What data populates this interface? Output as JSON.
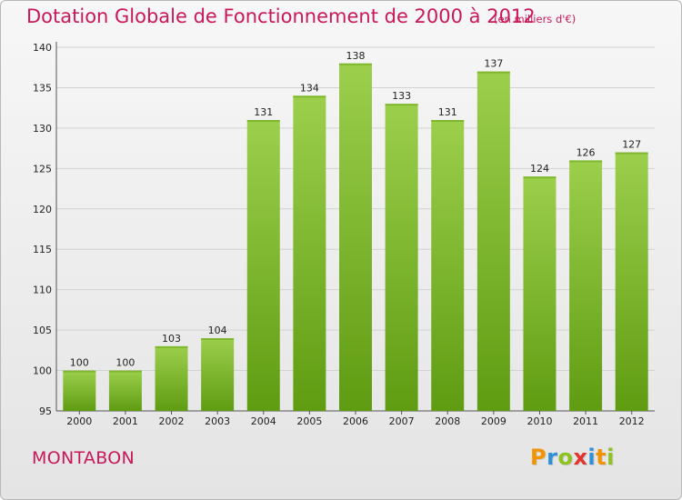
{
  "header": {
    "title": "Dotation Globale de Fonctionnement de 2000 à 2012",
    "unit": "(en milliers d'€)"
  },
  "footer": {
    "commune": "MONTABON",
    "logo_letters": [
      {
        "ch": "P",
        "color": "#f29400"
      },
      {
        "ch": "r",
        "color": "#2f8fd8"
      },
      {
        "ch": "o",
        "color": "#8dc21f"
      },
      {
        "ch": "x",
        "color": "#e3342f"
      },
      {
        "ch": "i",
        "color": "#2f8fd8"
      },
      {
        "ch": "t",
        "color": "#f29400"
      },
      {
        "ch": "i",
        "color": "#8dc21f"
      }
    ]
  },
  "chart_data": {
    "type": "bar",
    "title": "Dotation Globale de Fonctionnement de 2000 à 2012",
    "subtitle": "(en milliers d'€)",
    "categories": [
      "2000",
      "2001",
      "2002",
      "2003",
      "2004",
      "2005",
      "2006",
      "2007",
      "2008",
      "2009",
      "2010",
      "2011",
      "2012"
    ],
    "values": [
      100,
      100,
      103,
      104,
      131,
      134,
      138,
      133,
      131,
      137,
      124,
      126,
      127
    ],
    "ylim": [
      95,
      140
    ],
    "yticks": [
      95,
      100,
      105,
      110,
      115,
      120,
      125,
      130,
      135,
      140
    ],
    "xlabel": "",
    "ylabel": "",
    "grid": true,
    "bar_color_top": "#9ccf4c",
    "bar_color_bottom": "#5f9c12"
  }
}
